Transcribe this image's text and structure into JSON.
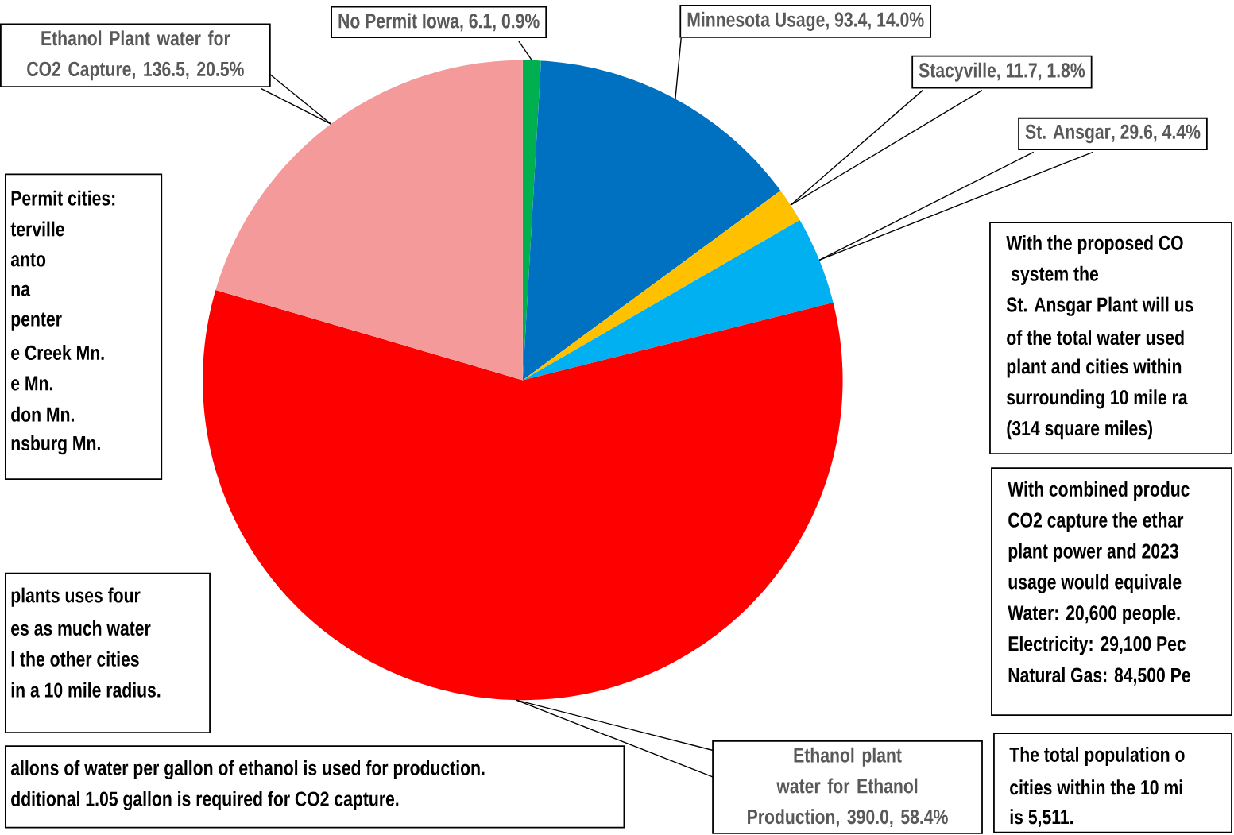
{
  "chart_data": {
    "type": "pie",
    "categories": [
      "No Permit Iowa",
      "Minnesota Usage",
      "Stacyville",
      "St. Ansgar",
      "Ethanol plant water for Ethanol Production",
      "Ethanol Plant water for CO2 Capture"
    ],
    "values": [
      6.1,
      93.4,
      11.7,
      29.6,
      390.0,
      136.5
    ],
    "value_labels": [
      ", 6.1, 0.9%",
      ", 93.4, 14.0%",
      ", 11.7, 1.8%",
      ", 29.6, 4.4%",
      ", 390.0, 58.4%",
      ", 136.5, 20.5%"
    ],
    "colors": [
      "#00b050",
      "#0070c0",
      "#ffc000",
      "#00b0f0",
      "#ff0000",
      "#f49a9a"
    ],
    "annotations": [
      "Permit cities:",
      "terville",
      "anto",
      "na",
      "penter",
      "e Creek Mn.",
      "e Mn.",
      "don Mn.",
      "nsburg Mn.",
      "plants uses four",
      "es as much water",
      "l the other cities",
      "in a 10 mile radius.",
      "allons of water per gallon of ethanol is used for production.",
      "dditional 1.05 gallon is required for CO2 capture.",
      "With the proposed CO",
      " system the",
      "St. Ansgar Plant will us",
      "of the total water used",
      "plant and cities within",
      "surrounding 10 mile ra",
      "(314 square miles)",
      "With combined produc",
      "CO2 capture the ethar",
      "plant power and 2023",
      "usage  would equivale",
      "Water: 20,600 people.",
      "Electricity: 29,100 Pec",
      "Natural Gas: 84,500 Pe",
      "The total population o",
      "cities within the 10 mi",
      "is 5,511."
    ]
  }
}
